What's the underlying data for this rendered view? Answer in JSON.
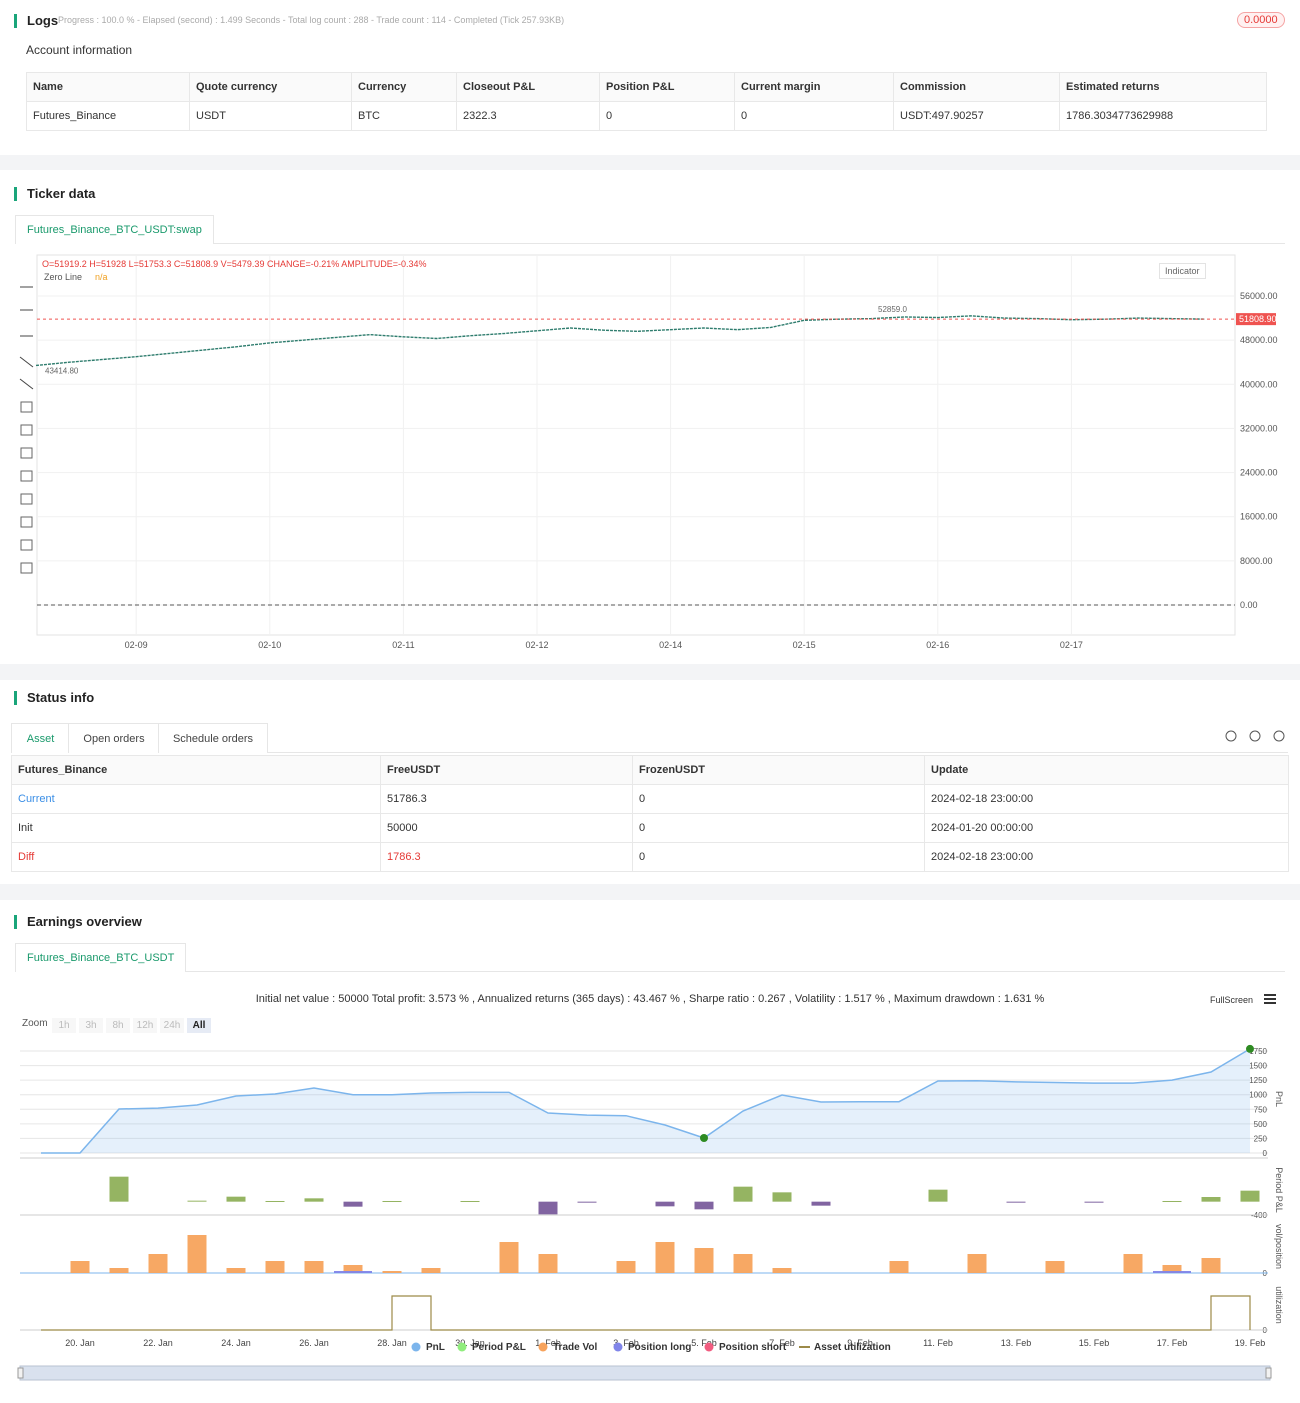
{
  "logs": {
    "title": "Logs",
    "progress": "Progress : 100.0 % - Elapsed (second) : 1.499  Seconds - Total log count : 288 - Trade count : 114 - Completed (Tick 257.93KB)",
    "badge": "0.0000"
  },
  "account": {
    "title": "Account information",
    "table": {
      "header": [
        "Name",
        "Quote currency",
        "Currency",
        "Closeout P&L",
        "Position P&L",
        "Current margin",
        "Commission",
        "Estimated returns"
      ],
      "rows": [
        [
          "Futures_Binance",
          "USDT",
          "BTC",
          "2322.3",
          "0",
          "0",
          "USDT:497.90257",
          "1786.3034773629988"
        ]
      ]
    }
  },
  "ticker": {
    "title": "Ticker data",
    "tab": "Futures_Binance_BTC_USDT:swap",
    "legend": "O=51919.2 H=51928 L=51753.3 C=51808.9 V=5479.39 CHANGE=-0.21% AMPLITUDE=-0.34%",
    "zero_line": "Zero Line",
    "zero_line_value": "n/a",
    "indicator_button": "Indicator",
    "min_label": "43414.80",
    "max_label": "52859.0",
    "last_label": "51808.90"
  },
  "status": {
    "title": "Status info",
    "tabs": [
      "Asset",
      "Open orders",
      "Schedule orders"
    ],
    "table": {
      "header": [
        "Futures_Binance",
        "FreeUSDT",
        "FrozenUSDT",
        "Update"
      ],
      "rows": [
        [
          "Current",
          "51786.3",
          "0",
          "2024-02-18 23:00:00"
        ],
        [
          "Init",
          "50000",
          "0",
          "2024-01-20 00:00:00"
        ],
        [
          "Diff",
          "1786.3",
          "0",
          "2024-02-18 23:00:00"
        ]
      ]
    }
  },
  "earnings": {
    "title": "Earnings overview",
    "tab": "Futures_Binance_BTC_USDT",
    "summary": "Initial net value : 50000 Total profit: 3.573 % , Annualized returns (365 days) : 43.467 % , Sharpe ratio : 0.267 , Volatility : 1.517 % , Maximum drawdown : 1.631 %",
    "fullscreen": "FullScreen",
    "zoom": "Zoom",
    "zoom_buttons": [
      "1h",
      "3h",
      "8h",
      "12h",
      "24h",
      "All"
    ]
  },
  "chart_data": [
    {
      "type": "line",
      "color": "#2f7d6e",
      "last_color": "#ef5350",
      "categories": [
        null,
        null,
        null,
        "02-09",
        null,
        null,
        null,
        "02-10",
        null,
        null,
        null,
        "02-11",
        null,
        null,
        null,
        "02-12",
        null,
        null,
        null,
        "02-14",
        null,
        null,
        null,
        "02-15",
        null,
        null,
        null,
        "02-16",
        null,
        null,
        null,
        "02-17",
        null,
        null,
        null,
        null
      ],
      "values": [
        43414.8,
        44000,
        44500,
        45000,
        45600,
        46200,
        46800,
        47500,
        48000,
        48500,
        49000,
        48600,
        48300,
        48800,
        49200,
        49700,
        50200,
        49800,
        49600,
        49900,
        50200,
        49900,
        50300,
        51600,
        51800,
        51900,
        52200,
        52100,
        52400,
        52000,
        51900,
        51700,
        51800,
        52000,
        51900,
        51808.9
      ],
      "ylim": [
        -5437,
        63431
      ],
      "yticks": [
        {
          "value": 0,
          "label": "0.00"
        },
        {
          "value": 8000,
          "label": "8000.00"
        },
        {
          "value": 16000,
          "label": "16000.00"
        },
        {
          "value": 24000,
          "label": "24000.00"
        },
        {
          "value": 32000,
          "label": "32000.00"
        },
        {
          "value": 40000,
          "label": "40000.00"
        },
        {
          "value": 48000,
          "label": "48000.00"
        },
        {
          "value": 56000,
          "label": "56000.00"
        }
      ],
      "grid": true
    },
    {
      "type": "multi",
      "categories": [
        null,
        "20. Jan",
        null,
        "22. Jan",
        null,
        "24. Jan",
        null,
        "26. Jan",
        null,
        "28. Jan",
        null,
        "30. Jan",
        null,
        "1. Feb",
        null,
        "3. Feb",
        null,
        "5. Feb",
        null,
        "7. Feb",
        null,
        "9. Feb",
        null,
        "11. Feb",
        null,
        "13. Feb",
        null,
        "15. Feb",
        null,
        "17. Feb",
        null,
        "19. Feb"
      ],
      "series": [
        {
          "name": "PnL",
          "color": "#7cb5ec",
          "ylabel": "PnL",
          "ylim": [
            -86,
            1939
          ],
          "yticks": [
            0,
            250,
            500,
            750,
            1000,
            1250,
            1500,
            1750
          ],
          "values": [
            0,
            0,
            755,
            770,
            823,
            978,
            1012,
            1115,
            1000,
            1000,
            1030,
            1040,
            1040,
            686,
            650,
            640,
            480,
            257,
            720,
            995,
            875,
            880,
            880,
            1235,
            1240,
            1220,
            1210,
            1200,
            1200,
            1250,
            1390,
            1786
          ]
        },
        {
          "name": "Period P&L",
          "color": "#90ed7d",
          "bar_color": "#8fb05a",
          "negative_color": "#7a5c9c",
          "ylabel": "Period P&L",
          "ylim": [
            -400,
            1100
          ],
          "yticks": [
            -400
          ],
          "values": [
            null,
            null,
            750,
            null,
            30,
            150,
            20,
            100,
            -150,
            20,
            null,
            20,
            null,
            -380,
            -20,
            null,
            -140,
            -230,
            450,
            280,
            -120,
            null,
            null,
            360,
            null,
            -20,
            null,
            -20,
            null,
            20,
            140,
            330
          ]
        },
        {
          "name": "Trade Vol",
          "color": "#f7a35c",
          "ylabel": "vol/position",
          "ylim": [
            0,
            53
          ],
          "yticks": [
            0
          ],
          "values": [
            null,
            12,
            5,
            19,
            38,
            5,
            12,
            12,
            8,
            2,
            5,
            null,
            31,
            19,
            null,
            12,
            31,
            25,
            19,
            5,
            null,
            null,
            12,
            null,
            19,
            null,
            12,
            null,
            19,
            8,
            15,
            null
          ]
        },
        {
          "name": "Position long",
          "color": "#8085e9",
          "ylim": [
            0,
            53
          ],
          "values": [
            null,
            null,
            null,
            null,
            null,
            null,
            null,
            null,
            2,
            null,
            null,
            null,
            null,
            null,
            null,
            null,
            null,
            null,
            null,
            null,
            null,
            null,
            null,
            null,
            null,
            null,
            null,
            null,
            null,
            2,
            null,
            null
          ]
        },
        {
          "name": "Position short",
          "color": "#f15c80",
          "ylim": [
            0,
            53
          ],
          "values": [
            null,
            null,
            null,
            null,
            null,
            null,
            null,
            null,
            null,
            null,
            null,
            null,
            null,
            null,
            null,
            null,
            null,
            null,
            null,
            null,
            null,
            null,
            null,
            null,
            null,
            null,
            null,
            null,
            null,
            null,
            null,
            null
          ]
        },
        {
          "name": "Asset utilization",
          "color": "#9c8a48",
          "ylabel": "utilization",
          "ylim": [
            0,
            1.47
          ],
          "yticks": [
            0
          ],
          "values": [
            0,
            0,
            0,
            0,
            0,
            0,
            0,
            0,
            0,
            1,
            0,
            0,
            0,
            0,
            0,
            0,
            0,
            0,
            0,
            0,
            0,
            0,
            0,
            0,
            0,
            0,
            0,
            0,
            0,
            0,
            1,
            0
          ]
        }
      ]
    }
  ]
}
